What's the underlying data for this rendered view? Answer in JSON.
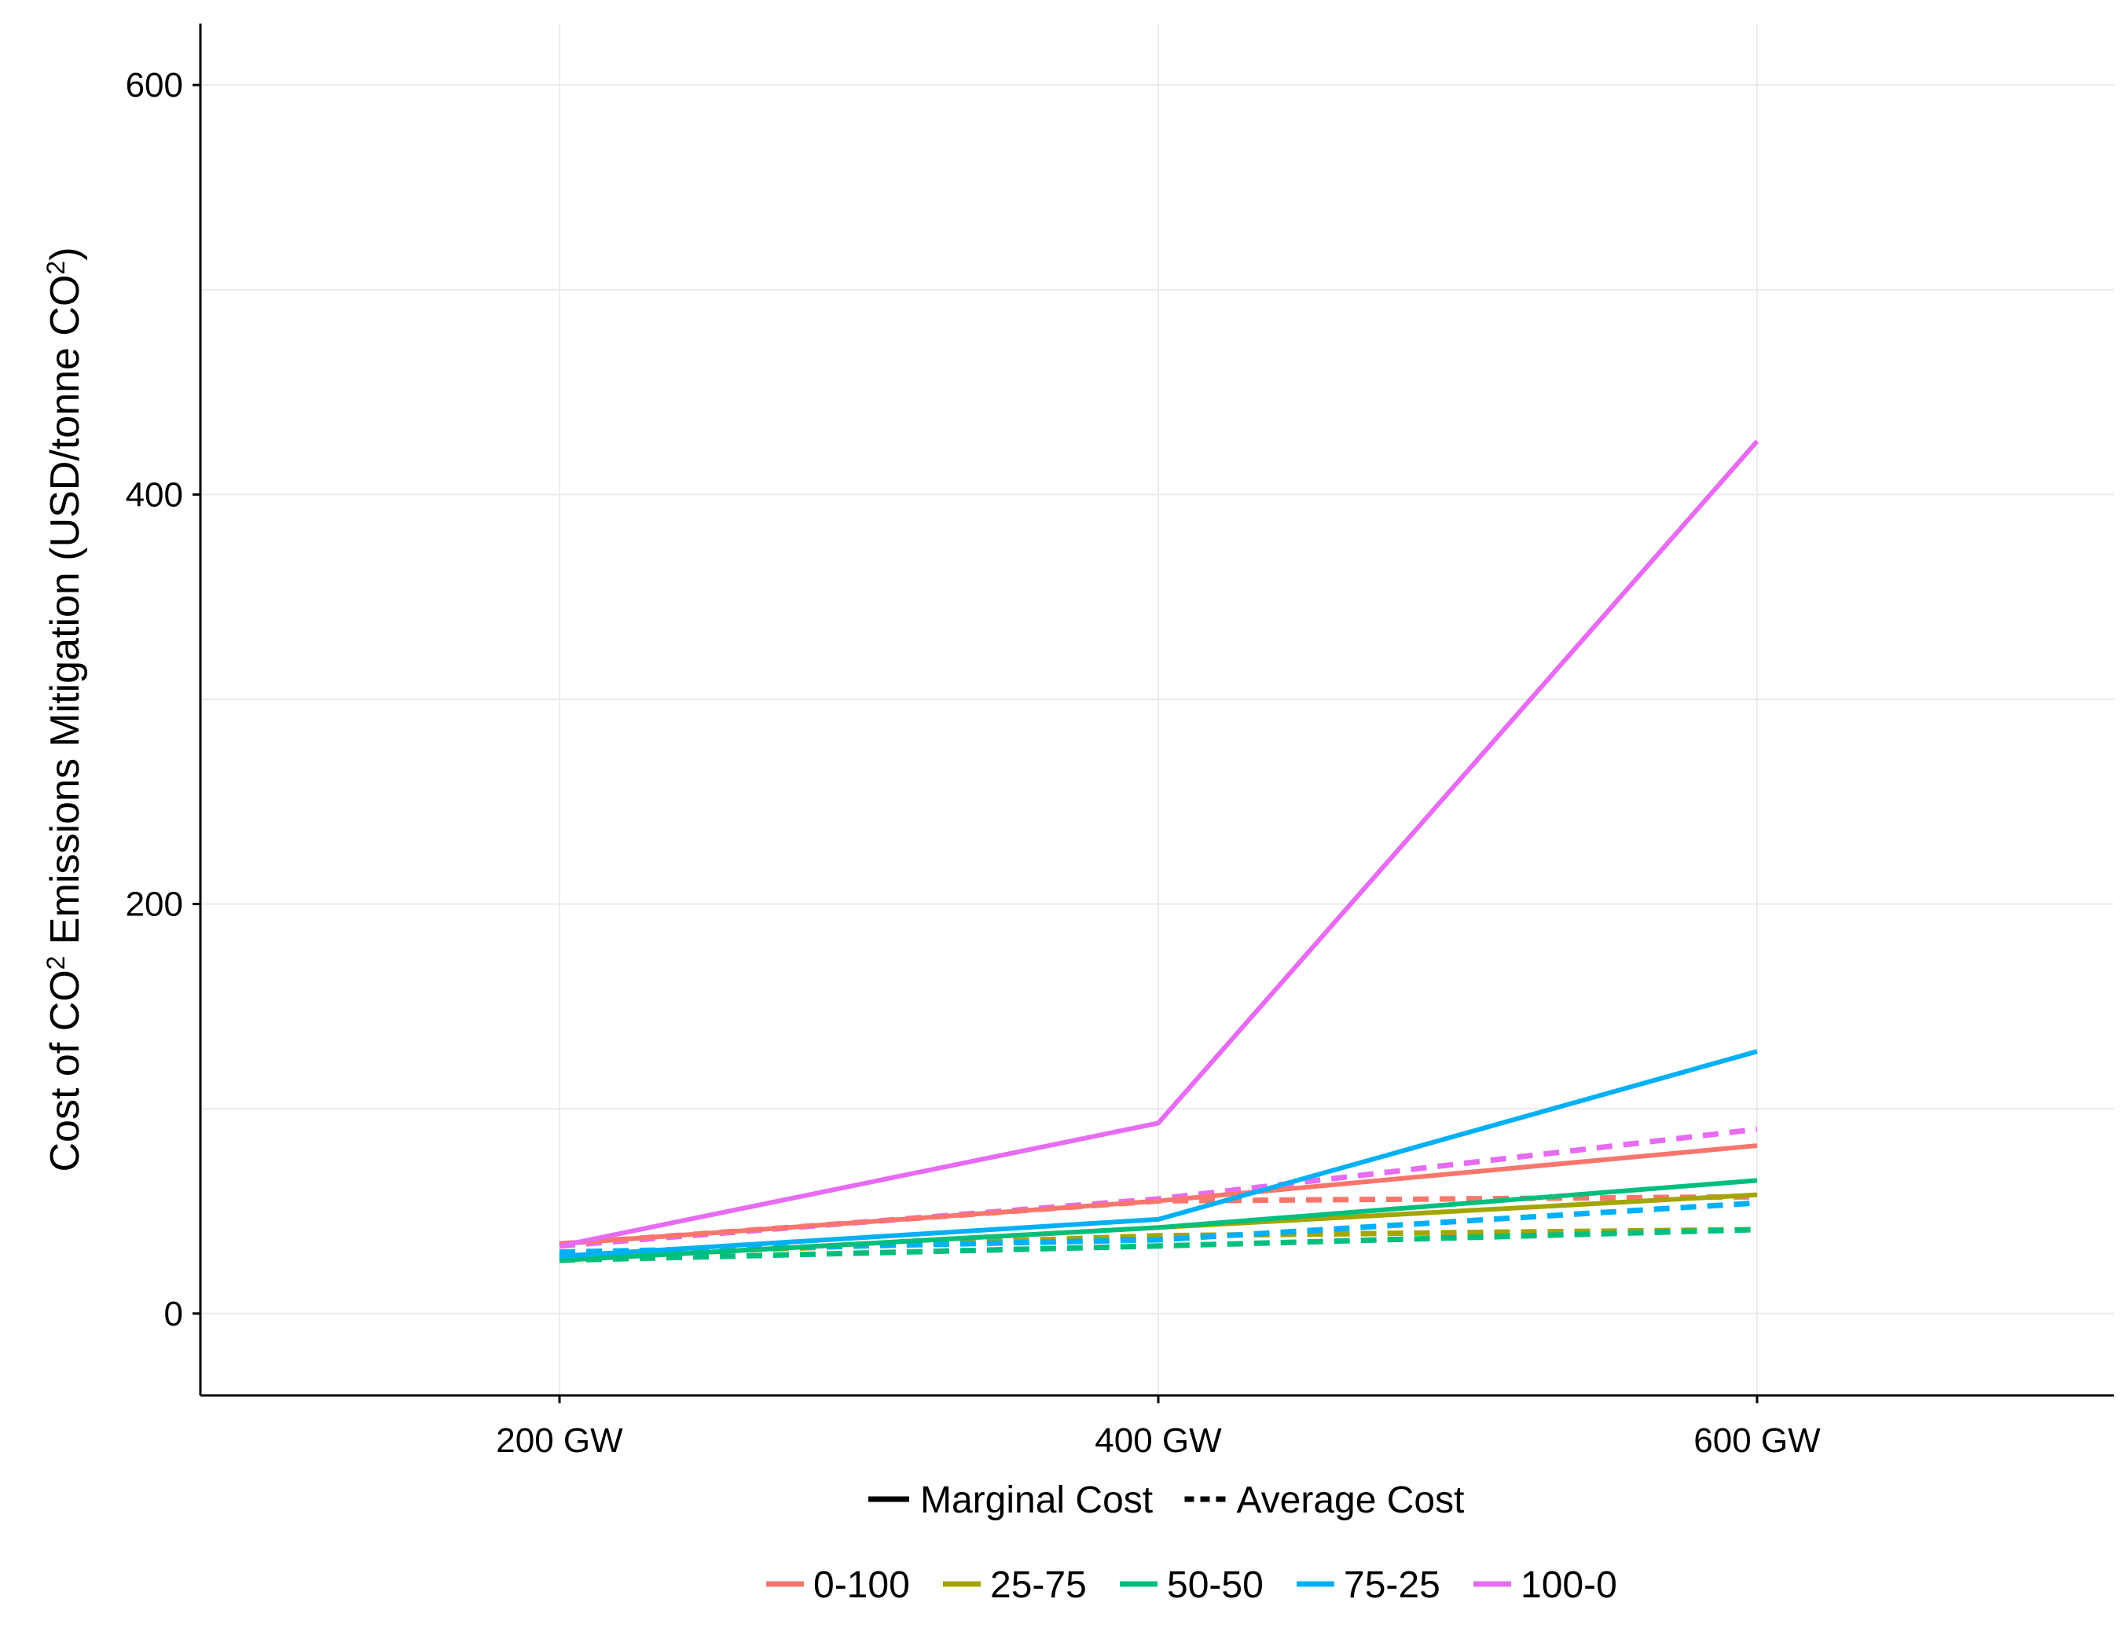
{
  "chart_data": {
    "type": "line",
    "title": "",
    "xlabel": "",
    "ylabel_parts": [
      "Cost of CO",
      "2",
      " Emissions Mitigation (USD/tonne CO",
      "2",
      ")"
    ],
    "categories": [
      "200 GW",
      "400 GW",
      "600 GW"
    ],
    "y_ticks": [
      "0",
      "200",
      "400",
      "600"
    ],
    "ylim": [
      -40,
      630
    ],
    "grid": true,
    "legend_position": "bottom",
    "linetype_legend": [
      {
        "name": "Marginal Cost",
        "style": "solid"
      },
      {
        "name": "Average Cost",
        "style": "dashed"
      }
    ],
    "series": [
      {
        "name": "0-100",
        "color": "#F8766D",
        "marginal": [
          34,
          55,
          82
        ],
        "average": [
          34,
          55,
          57
        ]
      },
      {
        "name": "25-75",
        "color": "#A3A500",
        "marginal": [
          26,
          42,
          58
        ],
        "average": [
          28,
          38,
          41
        ]
      },
      {
        "name": "50-50",
        "color": "#00BF7D",
        "marginal": [
          26,
          42,
          65
        ],
        "average": [
          26,
          33,
          41
        ]
      },
      {
        "name": "75-25",
        "color": "#00B0F6",
        "marginal": [
          28,
          46,
          128
        ],
        "average": [
          30,
          36,
          54
        ]
      },
      {
        "name": "100-0",
        "color": "#E76BF3",
        "marginal": [
          33,
          93,
          426
        ],
        "average": [
          33,
          56,
          90
        ]
      }
    ]
  }
}
